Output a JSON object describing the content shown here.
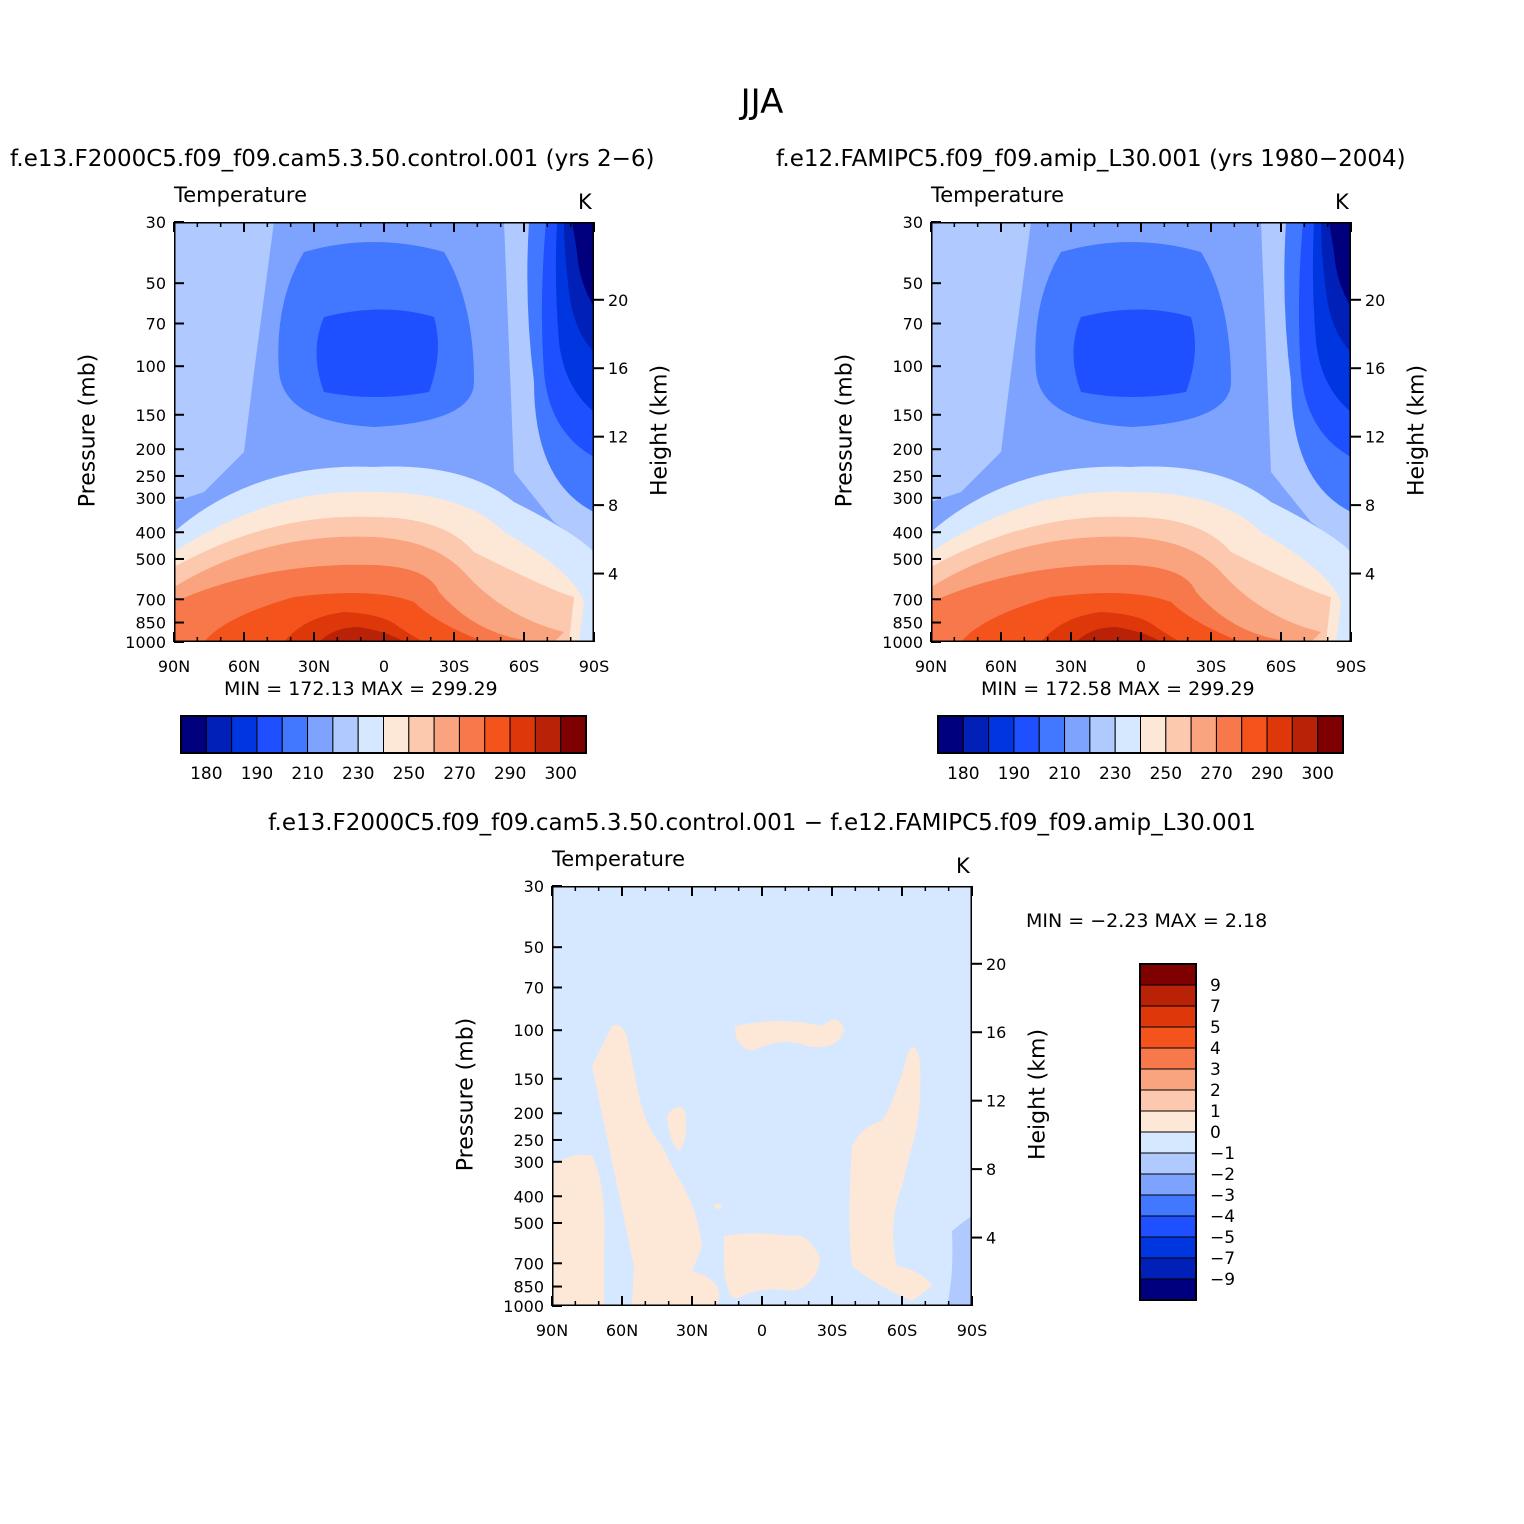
{
  "figure": {
    "title": "JJA",
    "panels": [
      {
        "case_name": "f.e13.F2000C5.f09_f09.cam5.3.50.control.001 (yrs 2−6)",
        "variable": "Temperature",
        "units": "K",
        "min_max": "MIN =  172.13   MAX =  299.29"
      },
      {
        "case_name": "f.e12.FAMIPC5.f09_f09.amip_L30.001 (yrs 1980−2004)",
        "variable": "Temperature",
        "units": "K",
        "min_max": "MIN =  172.58   MAX =  299.29"
      },
      {
        "case_name": "f.e13.F2000C5.f09_f09.cam5.3.50.control.001 − f.e12.FAMIPC5.f09_f09.amip_L30.001",
        "variable": "Temperature",
        "units": "K",
        "min_max": "MIN =   −2.23   MAX =    2.18"
      }
    ],
    "axes": {
      "left_label": "Pressure (mb)",
      "right_label": "Height (km)",
      "x_ticks": [
        "90N",
        "60N",
        "30N",
        "0",
        "30S",
        "60S",
        "90S"
      ],
      "pressure_ticks": [
        "30",
        "50",
        "70",
        "100",
        "150",
        "200",
        "250",
        "300",
        "400",
        "500",
        "700",
        "850",
        "1000"
      ],
      "height_ticks": [
        "4",
        "8",
        "12",
        "16",
        "20"
      ]
    },
    "colorbar_main": {
      "colors": [
        "#00007f",
        "#0020b8",
        "#0036e0",
        "#1f50ff",
        "#4277ff",
        "#7ea3ff",
        "#b0c9ff",
        "#d6e8ff",
        "#fde8d8",
        "#fcc8ae",
        "#f9a47f",
        "#f7784a",
        "#f4531c",
        "#de3709",
        "#ba2208",
        "#7f0000"
      ],
      "labels": [
        "180",
        "190",
        "210",
        "230",
        "250",
        "270",
        "290",
        "300"
      ]
    },
    "colorbar_diff": {
      "colors": [
        "#7f0000",
        "#ba2208",
        "#de3709",
        "#f4531c",
        "#f7784a",
        "#f9a47f",
        "#fcc8ae",
        "#fde8d8",
        "#d6e8ff",
        "#b0c9ff",
        "#7ea3ff",
        "#4277ff",
        "#1f50ff",
        "#0036e0",
        "#0020b8",
        "#00007f"
      ],
      "labels": [
        "9",
        "7",
        "5",
        "4",
        "3",
        "2",
        "1",
        "0",
        "−1",
        "−2",
        "−3",
        "−4",
        "−5",
        "−7",
        "−9"
      ]
    }
  },
  "chart_data": [
    {
      "type": "heatmap",
      "title": "Temperature",
      "xlabel": "",
      "ylabel": "Pressure (mb)",
      "y2label": "Height (km)",
      "units": "K",
      "x": [
        "90N",
        "60N",
        "30N",
        "0",
        "30S",
        "60S",
        "90S"
      ],
      "ylim": [
        1000,
        30
      ],
      "y_scale": "log",
      "levels": [
        180,
        190,
        200,
        210,
        220,
        230,
        240,
        250,
        260,
        270,
        280,
        290,
        300
      ],
      "min": 172.13,
      "max": 299.29
    },
    {
      "type": "heatmap",
      "title": "Temperature",
      "xlabel": "",
      "ylabel": "Pressure (mb)",
      "y2label": "Height (km)",
      "units": "K",
      "x": [
        "90N",
        "60N",
        "30N",
        "0",
        "30S",
        "60S",
        "90S"
      ],
      "ylim": [
        1000,
        30
      ],
      "y_scale": "log",
      "levels": [
        180,
        190,
        200,
        210,
        220,
        230,
        240,
        250,
        260,
        270,
        280,
        290,
        300
      ],
      "min": 172.58,
      "max": 299.29
    },
    {
      "type": "heatmap",
      "title": "Temperature",
      "xlabel": "",
      "ylabel": "Pressure (mb)",
      "y2label": "Height (km)",
      "units": "K",
      "x": [
        "90N",
        "60N",
        "30N",
        "0",
        "30S",
        "60S",
        "90S"
      ],
      "ylim": [
        1000,
        30
      ],
      "y_scale": "log",
      "levels": [
        -9,
        -7,
        -5,
        -4,
        -3,
        -2,
        -1,
        0,
        1,
        2,
        3,
        4,
        5,
        7,
        9
      ],
      "min": -2.23,
      "max": 2.18
    }
  ]
}
